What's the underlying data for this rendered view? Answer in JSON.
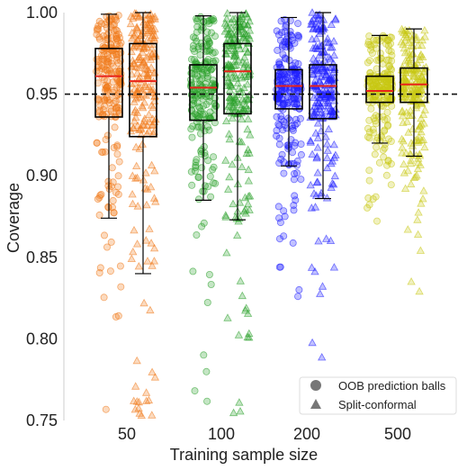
{
  "chart_data": {
    "type": "box-strip",
    "xlabel": "Training sample size",
    "ylabel": "Coverage",
    "ylim": [
      0.75,
      1.0
    ],
    "yticks": [
      0.75,
      0.8,
      0.85,
      0.9,
      0.95,
      1.0
    ],
    "ytick_labels": [
      "0.75",
      "0.80",
      "0.85",
      "0.90",
      "0.95",
      "1.00"
    ],
    "reference_line": 0.95,
    "categories": [
      "50",
      "100",
      "200",
      "500"
    ],
    "category_colors": [
      "#f07a1a",
      "#2ca02c",
      "#1f1fff",
      "#c8c814"
    ],
    "legend": {
      "position": "bottom-right",
      "items": [
        {
          "label": "OOB prediction balls",
          "marker": "circle"
        },
        {
          "label": "Split-conformal",
          "marker": "triangle"
        }
      ]
    },
    "series": [
      {
        "marker": "circle",
        "boxes": [
          {
            "category": "50",
            "whisker_low": 0.874,
            "q1": 0.936,
            "median": 0.961,
            "q3": 0.978,
            "whisker_high": 0.999
          },
          {
            "category": "100",
            "whisker_low": 0.885,
            "q1": 0.934,
            "median": 0.954,
            "q3": 0.968,
            "whisker_high": 0.998
          },
          {
            "category": "200",
            "whisker_low": 0.906,
            "q1": 0.941,
            "median": 0.955,
            "q3": 0.965,
            "whisker_high": 0.997
          },
          {
            "category": "500",
            "whisker_low": 0.92,
            "q1": 0.945,
            "median": 0.952,
            "q3": 0.961,
            "whisker_high": 0.986
          }
        ]
      },
      {
        "marker": "triangle",
        "boxes": [
          {
            "category": "50",
            "whisker_low": 0.84,
            "q1": 0.924,
            "median": 0.958,
            "q3": 0.981,
            "whisker_high": 1.0
          },
          {
            "category": "100",
            "whisker_low": 0.873,
            "q1": 0.938,
            "median": 0.964,
            "q3": 0.981,
            "whisker_high": 1.0
          },
          {
            "category": "200",
            "whisker_low": 0.886,
            "q1": 0.935,
            "median": 0.955,
            "q3": 0.968,
            "whisker_high": 1.0
          },
          {
            "category": "500",
            "whisker_low": 0.912,
            "q1": 0.945,
            "median": 0.956,
            "q3": 0.966,
            "whisker_high": 0.99
          }
        ]
      }
    ]
  }
}
